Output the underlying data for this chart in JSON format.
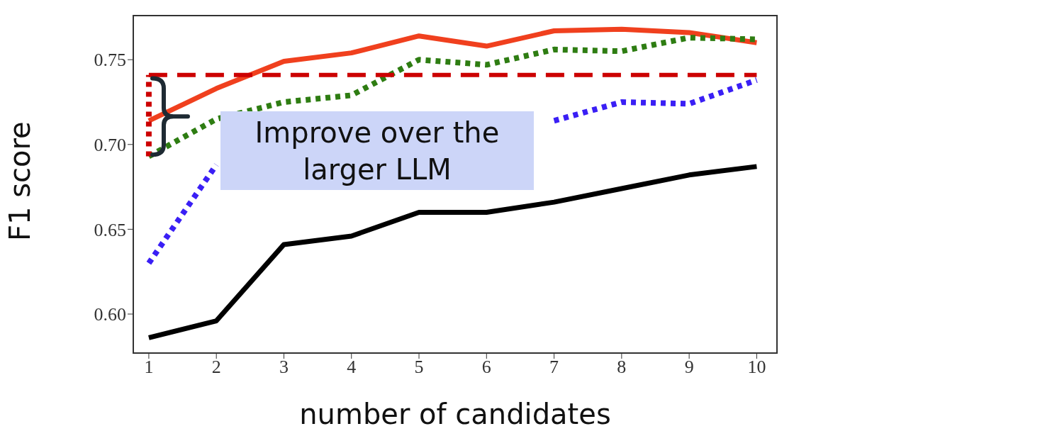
{
  "chart_data": {
    "type": "line",
    "xlabel": "number of candidates",
    "ylabel": "F1 score",
    "x": [
      1,
      2,
      3,
      4,
      5,
      6,
      7,
      8,
      9,
      10
    ],
    "series": [
      {
        "color": "#f0401e",
        "line_style": "solid",
        "values": [
          0.714,
          0.733,
          0.749,
          0.754,
          0.764,
          0.758,
          0.767,
          0.768,
          0.766,
          0.76
        ]
      },
      {
        "color": "#2e7d12",
        "line_style": "dotted",
        "values": [
          0.693,
          0.715,
          0.725,
          0.729,
          0.75,
          0.747,
          0.756,
          0.755,
          0.763,
          0.762
        ]
      },
      {
        "color": "#3a1ff5",
        "line_style": "dotted",
        "values": [
          0.63,
          0.688,
          null,
          null,
          null,
          null,
          0.714,
          0.725,
          0.724,
          0.738
        ]
      },
      {
        "color": "#000000",
        "line_style": "solid",
        "values": [
          0.586,
          0.596,
          0.641,
          0.646,
          0.66,
          0.66,
          0.666,
          0.674,
          0.682,
          0.687
        ]
      },
      {
        "color": "#cc0000",
        "line_style": "dotted",
        "x": [
          1,
          1
        ],
        "values": [
          0.693,
          0.741
        ]
      }
    ],
    "ref_lines": [
      {
        "axis": "y",
        "value": 0.741,
        "color": "#cc0000",
        "line_style": "dashed"
      }
    ],
    "xlim": [
      0.77,
      10.3
    ],
    "ylim": [
      0.577,
      0.776
    ],
    "xticks": [
      1,
      2,
      3,
      4,
      5,
      6,
      7,
      8,
      9,
      10
    ],
    "yticks": [
      {
        "value": 0.6,
        "label": "0.60"
      },
      0.65,
      {
        "value": 0.7,
        "label": "0.70"
      },
      0.75
    ],
    "annotations": [
      "Improve over the larger LLM"
    ],
    "grid": false,
    "legend": false,
    "marker": "none"
  }
}
